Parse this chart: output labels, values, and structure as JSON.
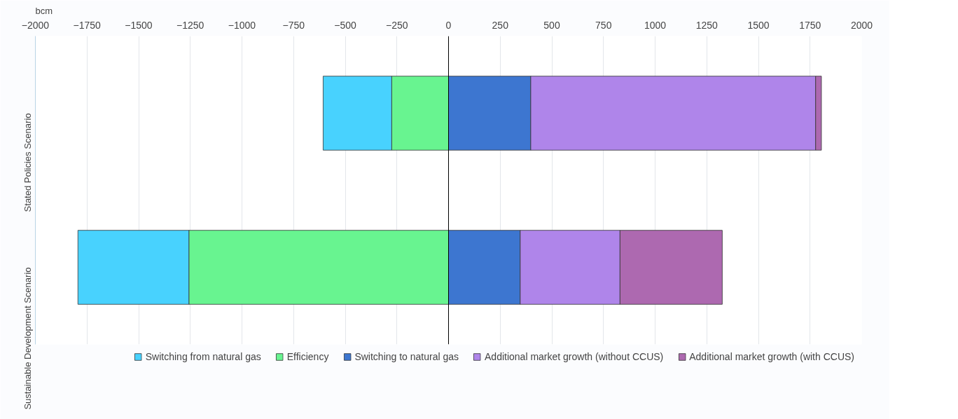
{
  "chart_data": {
    "type": "bar",
    "orientation": "horizontal",
    "stacked": true,
    "xlabel": "bcm",
    "categories": [
      "Stated Policies Scenario",
      "Sustainable Development Scenario"
    ],
    "series": [
      {
        "name": "Switching from natural gas",
        "color": "#48d2fe",
        "values": [
          -332,
          -538
        ]
      },
      {
        "name": "Efficiency",
        "color": "#68f490",
        "values": [
          -275,
          -1256
        ]
      },
      {
        "name": "Switching to natural gas",
        "color": "#3d76d0",
        "values": [
          398,
          347
        ]
      },
      {
        "name": "Additional market growth (without CCUS)",
        "color": "#af85ea",
        "values": [
          1379,
          483
        ]
      },
      {
        "name": "Additional market growth (with CCUS)",
        "color": "#ad69b0",
        "values": [
          28,
          495
        ]
      }
    ],
    "xlim": [
      -2000,
      2000
    ],
    "xticks": [
      -2000,
      -1750,
      -1500,
      -1250,
      -1000,
      -750,
      -500,
      -250,
      0,
      250,
      500,
      750,
      1000,
      1250,
      1500,
      1750,
      2000
    ],
    "grid": "x",
    "legend": "bottom",
    "ref_lines": [
      {
        "axis": "x",
        "value": 0,
        "color": "#000000"
      }
    ]
  }
}
